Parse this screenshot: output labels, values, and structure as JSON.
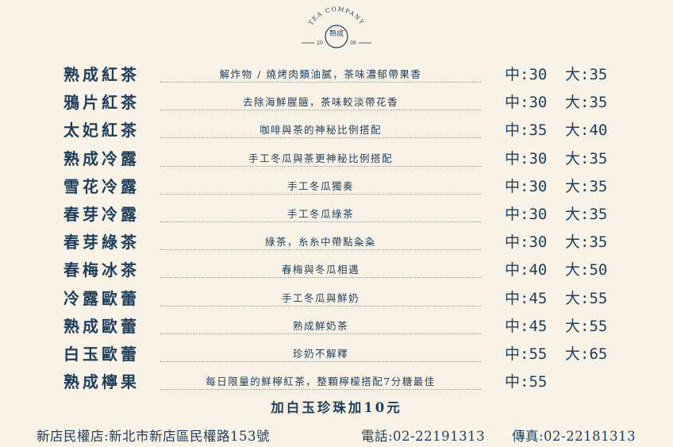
{
  "logo": {
    "arc_text": "TEA COMPANY",
    "center_text": "熟成",
    "year_left": "20",
    "year_right": "08"
  },
  "menu": [
    {
      "name": "熟成紅茶",
      "desc": "解炸物 / 燒烤肉類油膩，茶味濃郁帶果香",
      "medium": "中:30",
      "large": "大:35"
    },
    {
      "name": "鴉片紅茶",
      "desc": "去除海鮮腥膻，茶味較淡帶花香",
      "medium": "中:30",
      "large": "大:35"
    },
    {
      "name": "太妃紅茶",
      "desc": "咖啡與茶的神秘比例搭配",
      "medium": "中:35",
      "large": "大:40"
    },
    {
      "name": "熟成冷露",
      "desc": "手工冬瓜與茶更神秘比例搭配",
      "medium": "中:30",
      "large": "大:35"
    },
    {
      "name": "雪花冷露",
      "desc": "手工冬瓜獨奏",
      "medium": "中:30",
      "large": "大:35"
    },
    {
      "name": "春芽冷露",
      "desc": "手工冬瓜綠茶",
      "medium": "中:30",
      "large": "大:35"
    },
    {
      "name": "春芽綠茶",
      "desc": "綠茶，糸糸中帶點粂粂",
      "medium": "中:30",
      "large": "大:35"
    },
    {
      "name": "春梅冰茶",
      "desc": "春梅與冬瓜相遇",
      "medium": "中:40",
      "large": "大:50"
    },
    {
      "name": "冷露歐蕾",
      "desc": "手工冬瓜與鮮奶",
      "medium": "中:45",
      "large": "大:55"
    },
    {
      "name": "熟成歐蕾",
      "desc": "熟成鮮奶茶",
      "medium": "中:45",
      "large": "大:55"
    },
    {
      "name": "白玉歐蕾",
      "desc": "珍奶不解釋",
      "medium": "中:55",
      "large": "大:65"
    },
    {
      "name": "熟成檸果",
      "desc": "每日限量的鮮檸紅茶，整顆檸檬搭配7分糖最佳",
      "medium": "中:55",
      "large": ""
    }
  ],
  "addon": "加白玉珍珠加10元",
  "footer": {
    "address": "新店民權店:新北市新店區民權路153號",
    "phone": "電話:02-22191313",
    "fax": "傳真:02-22181313"
  },
  "colors": {
    "background": "#f9f2e7",
    "text": "#1e3e5c"
  }
}
